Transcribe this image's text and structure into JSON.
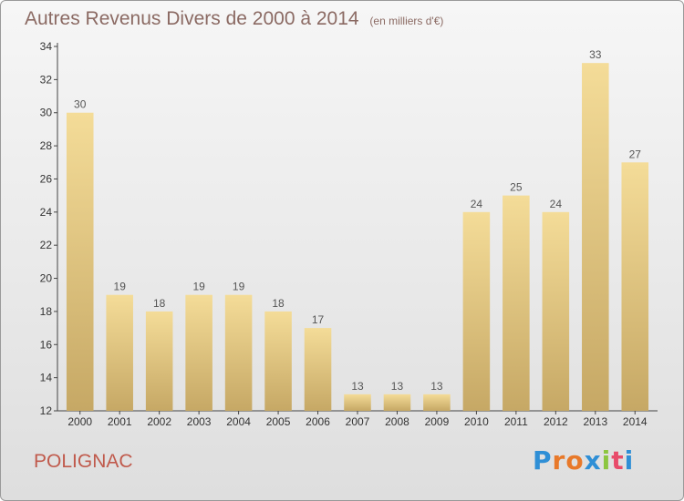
{
  "title": "Autres Revenus Divers de 2000 à 2014",
  "unit": "(en milliers d'€)",
  "commune": "POLIGNAC",
  "brand": {
    "letters": [
      "P",
      "r",
      "o",
      "x",
      "i",
      "t",
      "i"
    ],
    "colors": [
      "#2f8fd6",
      "#e8792a",
      "#e8792a",
      "#2f8fd6",
      "#8cc63f",
      "#e84b6a",
      "#2f8fd6"
    ]
  },
  "colors": {
    "bar_light": "#f4dc98",
    "bar_dark": "#c6a865",
    "label": "#555555"
  },
  "chart_data": {
    "type": "bar",
    "categories": [
      "2000",
      "2001",
      "2002",
      "2003",
      "2004",
      "2005",
      "2006",
      "2007",
      "2008",
      "2009",
      "2010",
      "2011",
      "2012",
      "2013",
      "2014"
    ],
    "values": [
      30,
      19,
      18,
      19,
      19,
      18,
      17,
      13,
      13,
      13,
      24,
      25,
      24,
      33,
      27
    ],
    "ylim": [
      12,
      34
    ],
    "yticks": [
      12,
      14,
      16,
      18,
      20,
      22,
      24,
      26,
      28,
      30,
      32,
      34
    ],
    "grid": false
  }
}
